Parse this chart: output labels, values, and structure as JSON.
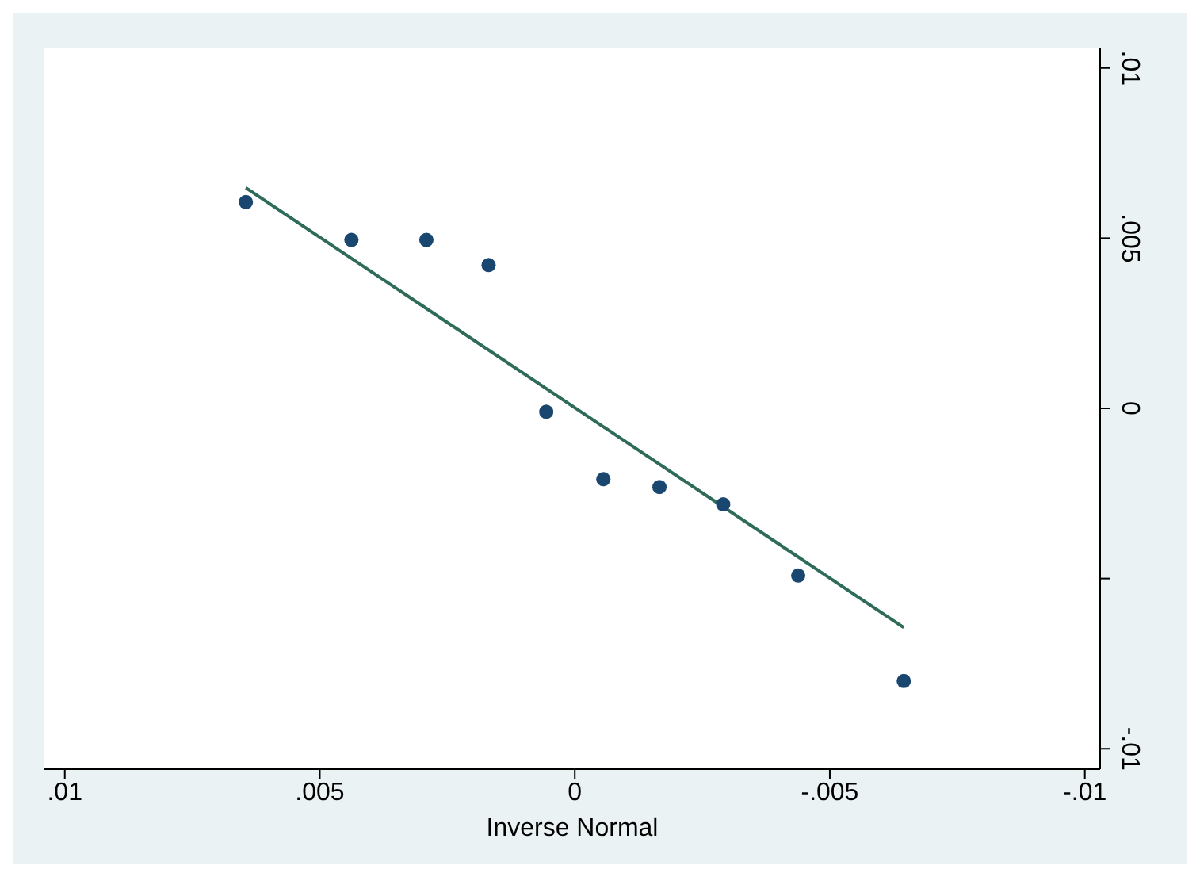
{
  "chart_data": {
    "type": "scatter",
    "xlabel": "Inverse Normal",
    "xlim": [
      0.0104,
      -0.0103
    ],
    "xticks": [
      {
        "value": 0.01,
        "label": ".01"
      },
      {
        "value": 0.005,
        "label": ".005"
      },
      0,
      {
        "value": -0.005,
        "label": "-.005"
      },
      {
        "value": -0.01,
        "label": "-.01"
      }
    ],
    "ylim": [
      -0.0106,
      0.0106
    ],
    "yticks": [
      {
        "value": 0.01,
        "label": ".01"
      },
      {
        "value": 0.005,
        "label": ".005"
      },
      0,
      {
        "value": -0.005,
        "label": null
      },
      {
        "value": -0.01,
        "label": "-.01"
      }
    ],
    "grid": false,
    "legend": false,
    "marker": "circle",
    "series": [
      {
        "type": "scatter",
        "color": "#1a476f",
        "x": [
          0.00645,
          0.00438,
          0.00291,
          0.00169,
          0.00056,
          -0.00056,
          -0.00166,
          -0.00291,
          -0.00438,
          -0.00645
        ],
        "values": [
          0.00606,
          0.00495,
          0.00495,
          0.00421,
          -0.0001,
          -0.00208,
          -0.00231,
          -0.00282,
          -0.00491,
          -0.00801
        ]
      },
      {
        "type": "line",
        "color": "#2e6b5a",
        "marker": "none",
        "x": [
          0.00645,
          -0.00645
        ],
        "values": [
          0.00648,
          -0.00644
        ]
      }
    ]
  }
}
